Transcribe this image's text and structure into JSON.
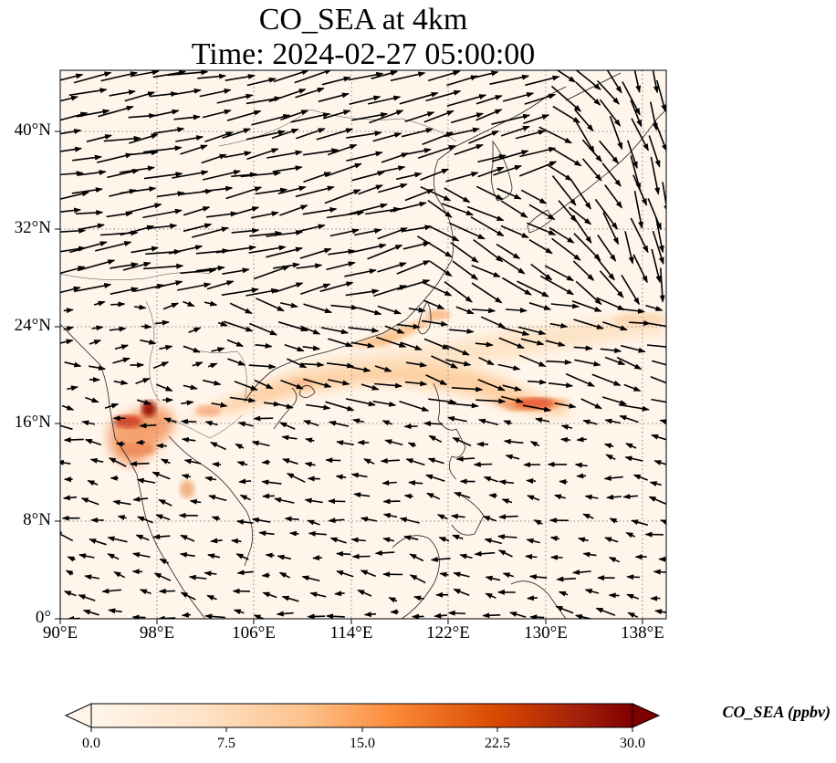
{
  "title": {
    "line1": "CO_SEA at 4km",
    "line2": "Time: 2024-02-27 05:00:00"
  },
  "lat_labels": [
    "0°",
    "8°N",
    "16°N",
    "24°N",
    "32°N",
    "40°N"
  ],
  "lon_labels": [
    "90°E",
    "98°E",
    "106°E",
    "114°E",
    "122°E",
    "130°E",
    "138°E"
  ],
  "colorbar": {
    "label": "CO_SEA (ppbv)",
    "ticks": [
      "0.0",
      "7.5",
      "15.0",
      "22.5",
      "30.0"
    ],
    "range": [
      0,
      30
    ],
    "extend": "both",
    "colormap": [
      "#fff5eb",
      "#fdd2a5",
      "#fd9243",
      "#df4f22",
      "#a3200a",
      "#7f0000"
    ]
  },
  "map": {
    "extent_lon": [
      90,
      140
    ],
    "extent_lat": [
      0,
      45
    ],
    "gridlines": "dotted",
    "background": "#fff5eb"
  }
}
